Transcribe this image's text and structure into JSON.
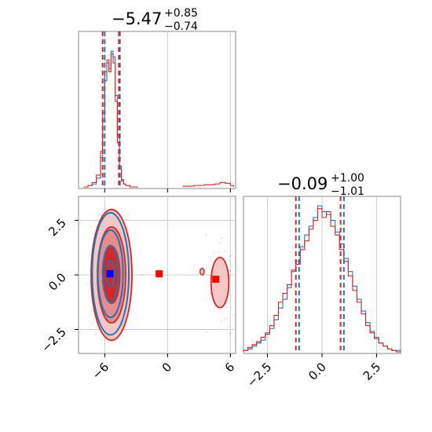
{
  "chart_data": [
    {
      "type": "histogram",
      "panel": "marginal-param-1",
      "title_value": "−5.47",
      "title_upper": "+0.85",
      "title_lower": "−0.74",
      "xlim": [
        -8.5,
        6.5
      ],
      "quantiles": {
        "red": [
          -6.2,
          -4.65
        ],
        "blue": [
          -6.0,
          -4.55
        ]
      },
      "bins": [
        -8.0,
        -7.6,
        -7.2,
        -6.8,
        -6.4,
        -6.2,
        -6.0,
        -5.8,
        -5.6,
        -5.4,
        -5.2,
        -5.0,
        -4.8,
        -4.6,
        -4.4,
        -4.2,
        -4.0,
        -3.6,
        -3.2,
        -2.8
      ],
      "series": [
        {
          "color": "#1f77b4",
          "values": [
            0.0,
            0.01,
            0.02,
            0.06,
            0.2,
            0.45,
            0.72,
            0.84,
            0.8,
            0.92,
            0.88,
            0.62,
            0.35,
            0.14,
            0.05,
            0.02,
            0.01,
            0.0,
            0.0
          ]
        },
        {
          "color": "#d62728",
          "values": [
            0.0,
            0.01,
            0.03,
            0.08,
            0.24,
            0.5,
            0.78,
            0.86,
            0.78,
            0.9,
            0.84,
            0.58,
            0.3,
            0.12,
            0.04,
            0.02,
            0.01,
            0.0,
            0.0
          ]
        }
      ],
      "red_tail_bins": [
        1.5,
        2.5,
        3.5,
        4.5,
        5.0,
        5.5,
        6.0,
        6.3
      ],
      "red_tail_values": [
        0.005,
        0.01,
        0.015,
        0.02,
        0.03,
        0.025,
        0.01
      ]
    },
    {
      "type": "histogram",
      "panel": "marginal-param-2",
      "title_value": "−0.09",
      "title_upper": "+1.00",
      "title_lower": "−1.01",
      "xlim": [
        -3.6,
        3.6
      ],
      "xticks": [
        -2.5,
        0.0,
        2.5
      ],
      "xtick_labels": [
        "−2.5",
        "0.0",
        "2.5"
      ],
      "quantiles": {
        "red": [
          -1.2,
          0.85
        ],
        "blue": [
          -1.05,
          1.0
        ]
      },
      "bins": [
        -3.6,
        -3.4,
        -3.2,
        -3.0,
        -2.8,
        -2.6,
        -2.4,
        -2.2,
        -2.0,
        -1.8,
        -1.6,
        -1.4,
        -1.2,
        -1.0,
        -0.8,
        -0.6,
        -0.4,
        -0.2,
        0.0,
        0.2,
        0.4,
        0.6,
        0.8,
        1.0,
        1.2,
        1.4,
        1.6,
        1.8,
        2.0,
        2.2,
        2.4,
        2.6,
        2.8,
        3.0,
        3.2,
        3.4,
        3.6
      ],
      "series": [
        {
          "color": "#1f77b4",
          "values": [
            0.01,
            0.02,
            0.04,
            0.06,
            0.08,
            0.12,
            0.16,
            0.22,
            0.3,
            0.36,
            0.44,
            0.55,
            0.62,
            0.72,
            0.8,
            0.86,
            0.92,
            1.0,
            0.96,
            0.94,
            0.9,
            0.82,
            0.74,
            0.64,
            0.55,
            0.45,
            0.36,
            0.28,
            0.2,
            0.14,
            0.1,
            0.06,
            0.04,
            0.02,
            0.01,
            0.01
          ]
        },
        {
          "color": "#d62728",
          "values": [
            0.01,
            0.03,
            0.05,
            0.07,
            0.1,
            0.13,
            0.18,
            0.25,
            0.34,
            0.4,
            0.46,
            0.56,
            0.6,
            0.7,
            0.76,
            0.84,
            0.9,
            0.98,
            0.92,
            0.96,
            0.86,
            0.8,
            0.7,
            0.62,
            0.52,
            0.42,
            0.34,
            0.26,
            0.18,
            0.13,
            0.09,
            0.06,
            0.04,
            0.02,
            0.01,
            0.0
          ]
        }
      ]
    },
    {
      "type": "contour",
      "panel": "joint-param-1-param-2",
      "xlim": [
        -8.5,
        6.5
      ],
      "ylim": [
        -3.6,
        3.6
      ],
      "xticks": [
        -6,
        0,
        6
      ],
      "xtick_labels": [
        "−6",
        "0",
        "6"
      ],
      "yticks": [
        -2.5,
        0.0,
        2.5
      ],
      "ytick_labels": [
        "−2.5",
        "0.0",
        "2.5"
      ],
      "red_contours": [
        {
          "cx": -5.35,
          "cy": 0.0,
          "rx": 1.95,
          "ry": 3.0
        },
        {
          "cx": -5.35,
          "cy": 0.0,
          "rx": 1.35,
          "ry": 2.2
        },
        {
          "cx": -5.35,
          "cy": 0.0,
          "rx": 0.8,
          "ry": 1.3
        }
      ],
      "blue_contours": [
        {
          "cx": -5.45,
          "cy": 0.05,
          "rx": 1.75,
          "ry": 2.8
        },
        {
          "cx": -5.45,
          "cy": 0.05,
          "rx": 1.2,
          "ry": 2.0
        },
        {
          "cx": -5.45,
          "cy": 0.05,
          "rx": 0.75,
          "ry": 1.3
        },
        {
          "cx": -5.45,
          "cy": 0.05,
          "rx": 0.35,
          "ry": 0.6
        }
      ],
      "red_island": {
        "cx": 5.0,
        "cy": -0.35,
        "rx": 0.85,
        "ry": 1.15
      },
      "red_island_small": {
        "cx": 3.3,
        "cy": 0.15,
        "rx": 0.2,
        "ry": 0.15
      },
      "markers": [
        {
          "color": "#0000ff",
          "x": -5.5,
          "y": 0.05
        },
        {
          "color": "#ff0000",
          "x": -0.8,
          "y": 0.05
        },
        {
          "color": "#ff0000",
          "x": 4.6,
          "y": -0.2
        }
      ],
      "colors": {
        "red": "#d62728",
        "blue": "#1f77b4"
      }
    }
  ]
}
